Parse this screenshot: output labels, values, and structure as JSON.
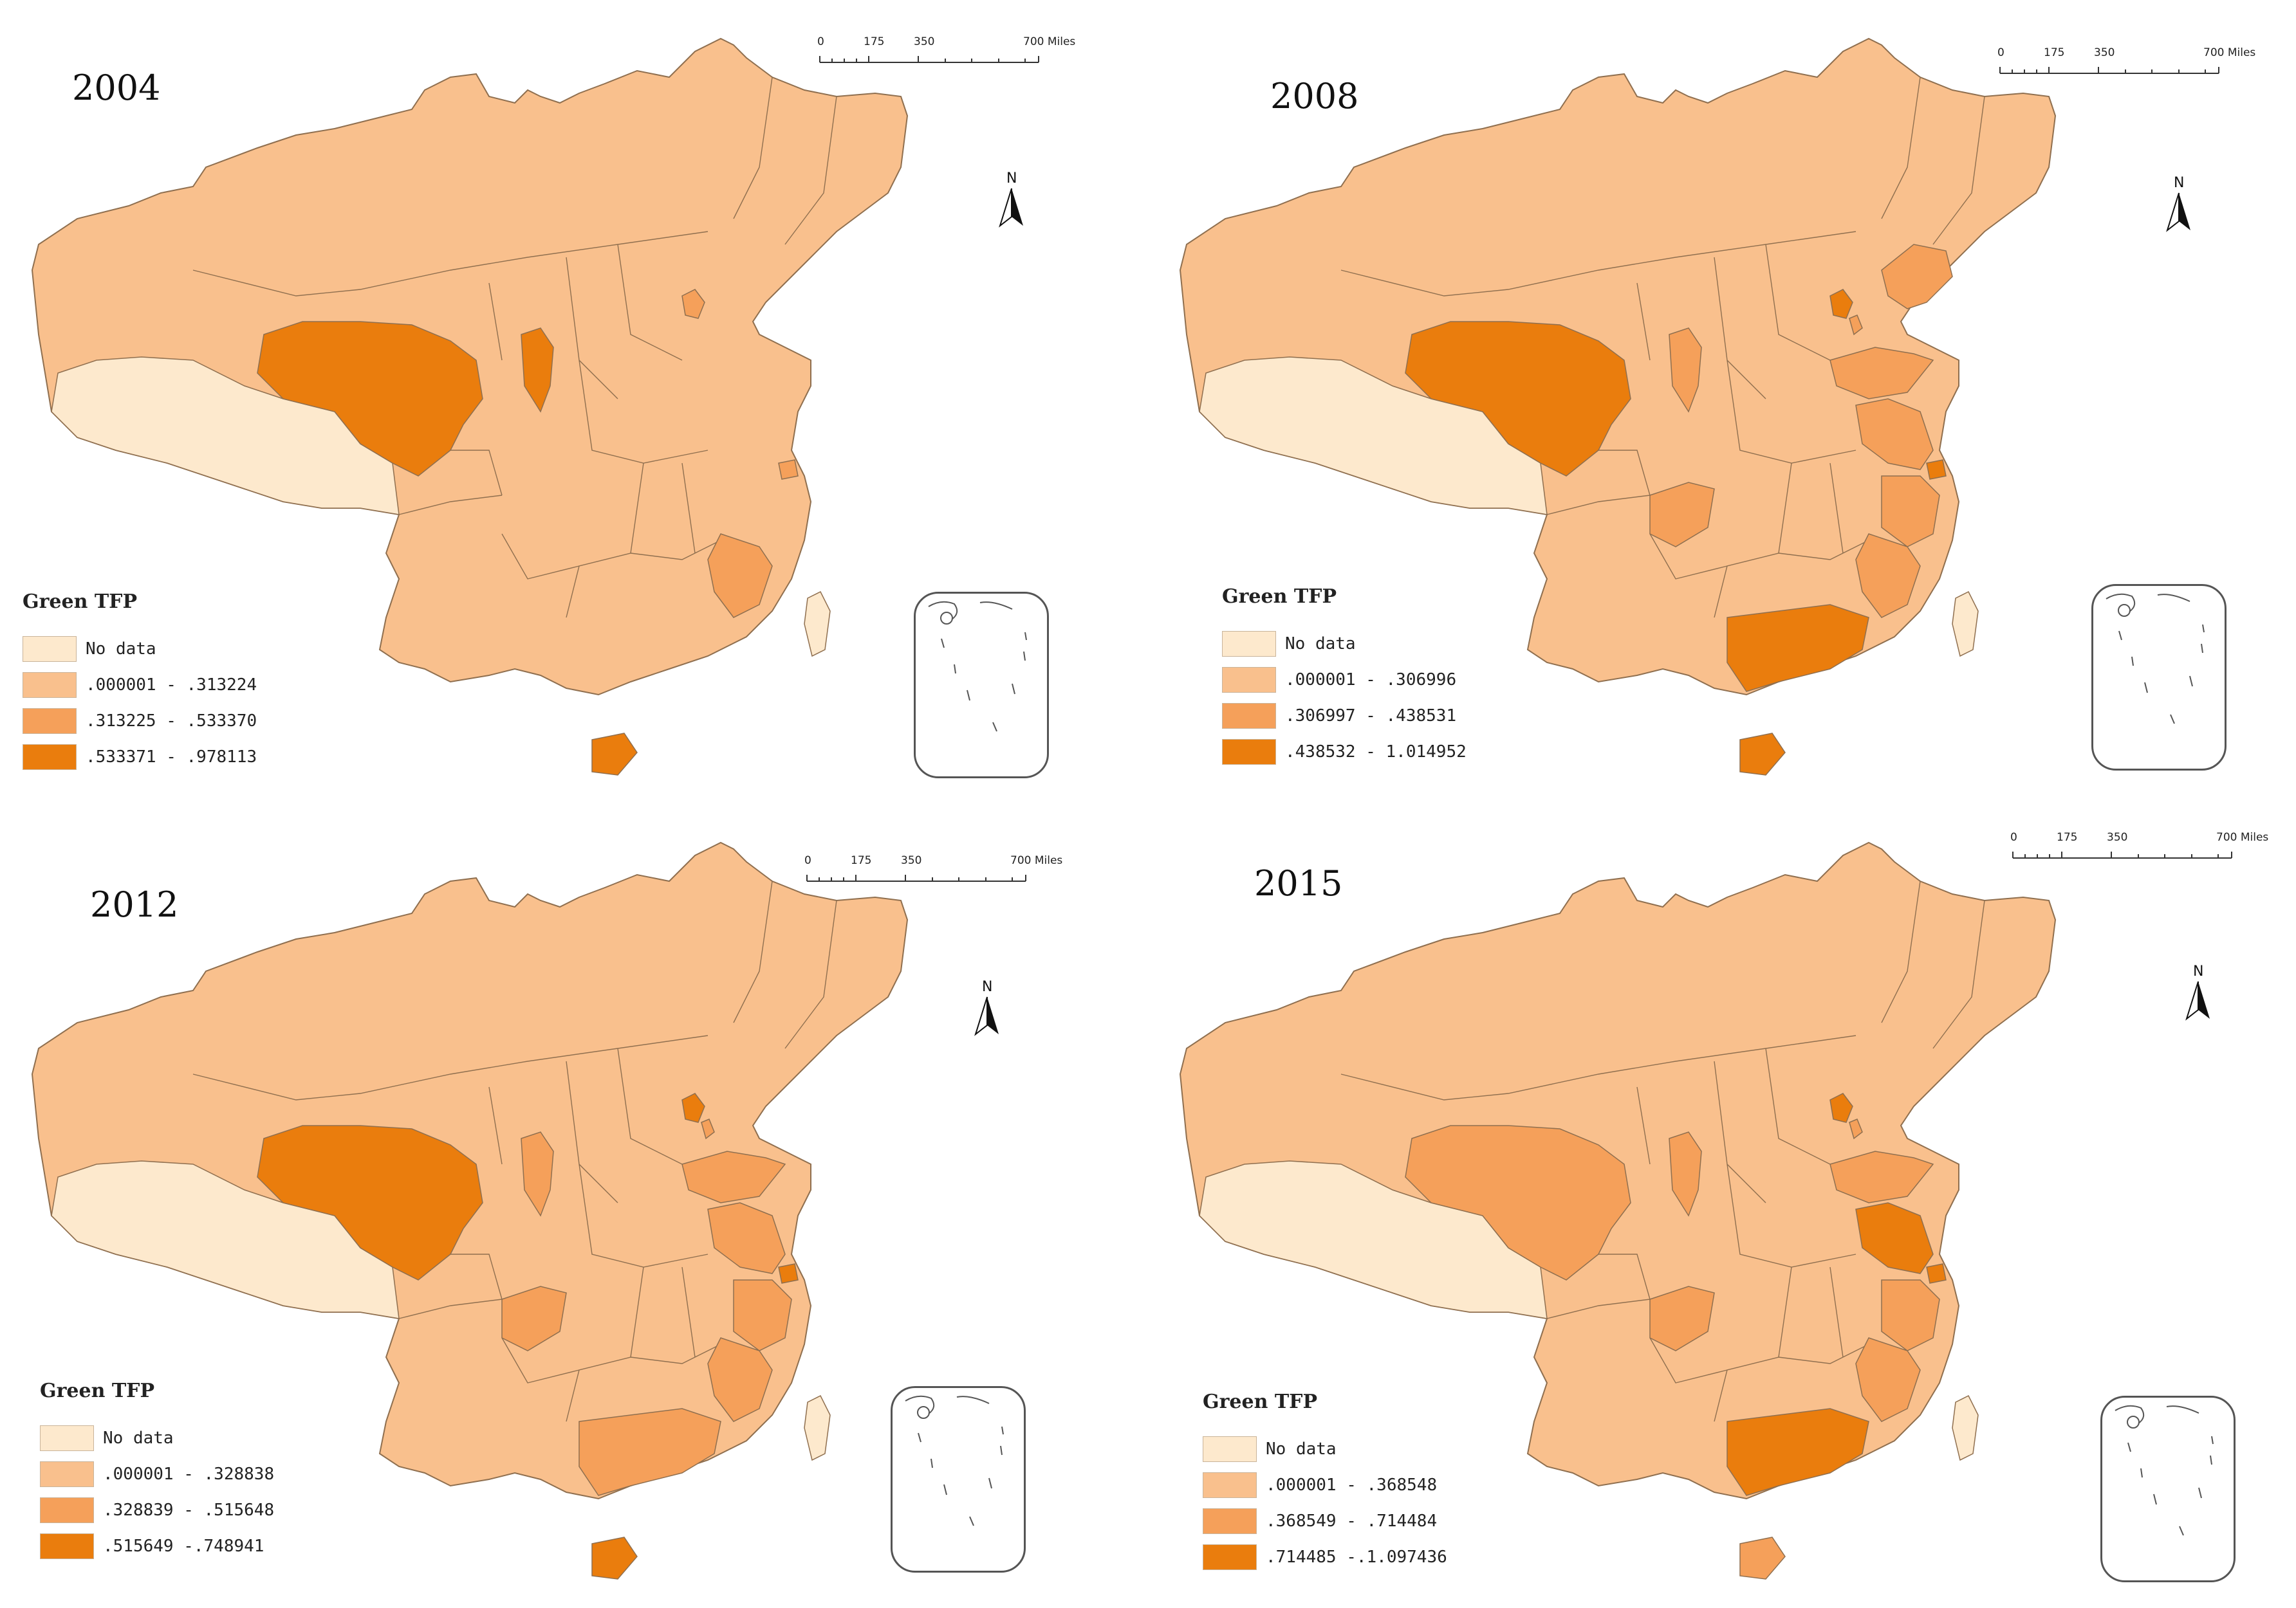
{
  "legend_title": "Green TFP",
  "scale": {
    "labels": [
      "0",
      "175",
      "350",
      "700 Miles"
    ]
  },
  "north_label": "N",
  "colors": {
    "no_data": "#fde9cd",
    "class1": "#f9c08d",
    "class2": "#f5a05a",
    "class3": "#ea7d0d",
    "border": "#8f6f4f"
  },
  "panels": [
    {
      "year": "2004",
      "legend": [
        "No data",
        ".000001 - .313224",
        ".313225 - .533370",
        ".533371 - .978113"
      ],
      "regions": {
        "tibet": 0,
        "qinghai": 3,
        "ningxia": 3,
        "beijing": 2,
        "shanghai": 2,
        "fujian": 2,
        "hainan": 3,
        "taiwan": 0
      }
    },
    {
      "year": "2008",
      "legend": [
        "No data",
        ".000001 - .306996",
        ".306997 - .438531",
        ".438532 - 1.014952"
      ],
      "regions": {
        "tibet": 0,
        "qinghai": 3,
        "ningxia": 2,
        "beijing": 3,
        "tianjin": 2,
        "liaoning": 2,
        "shandong": 2,
        "jiangsu": 2,
        "shanghai": 3,
        "zhejiang": 2,
        "fujian": 2,
        "guangdong": 3,
        "hainan": 3,
        "chongqing": 2,
        "taiwan": 0
      }
    },
    {
      "year": "2012",
      "legend": [
        "No data",
        ".000001 - .328838",
        ".328839 - .515648",
        ".515649 -.748941"
      ],
      "regions": {
        "tibet": 0,
        "qinghai": 3,
        "ningxia": 2,
        "beijing": 3,
        "tianjin": 2,
        "shandong": 2,
        "jiangsu": 2,
        "shanghai": 3,
        "zhejiang": 2,
        "fujian": 2,
        "guangdong": 2,
        "hainan": 3,
        "chongqing": 2,
        "taiwan": 0
      }
    },
    {
      "year": "2015",
      "legend": [
        "No data",
        ".000001 - .368548",
        ".368549 - .714484",
        ".714485 -.1.097436"
      ],
      "regions": {
        "tibet": 0,
        "qinghai": 2,
        "ningxia": 2,
        "beijing": 3,
        "tianjin": 2,
        "shandong": 2,
        "jiangsu": 3,
        "shanghai": 3,
        "zhejiang": 2,
        "fujian": 2,
        "guangdong": 3,
        "hainan": 2,
        "chongqing": 2,
        "taiwan": 0
      }
    }
  ]
}
